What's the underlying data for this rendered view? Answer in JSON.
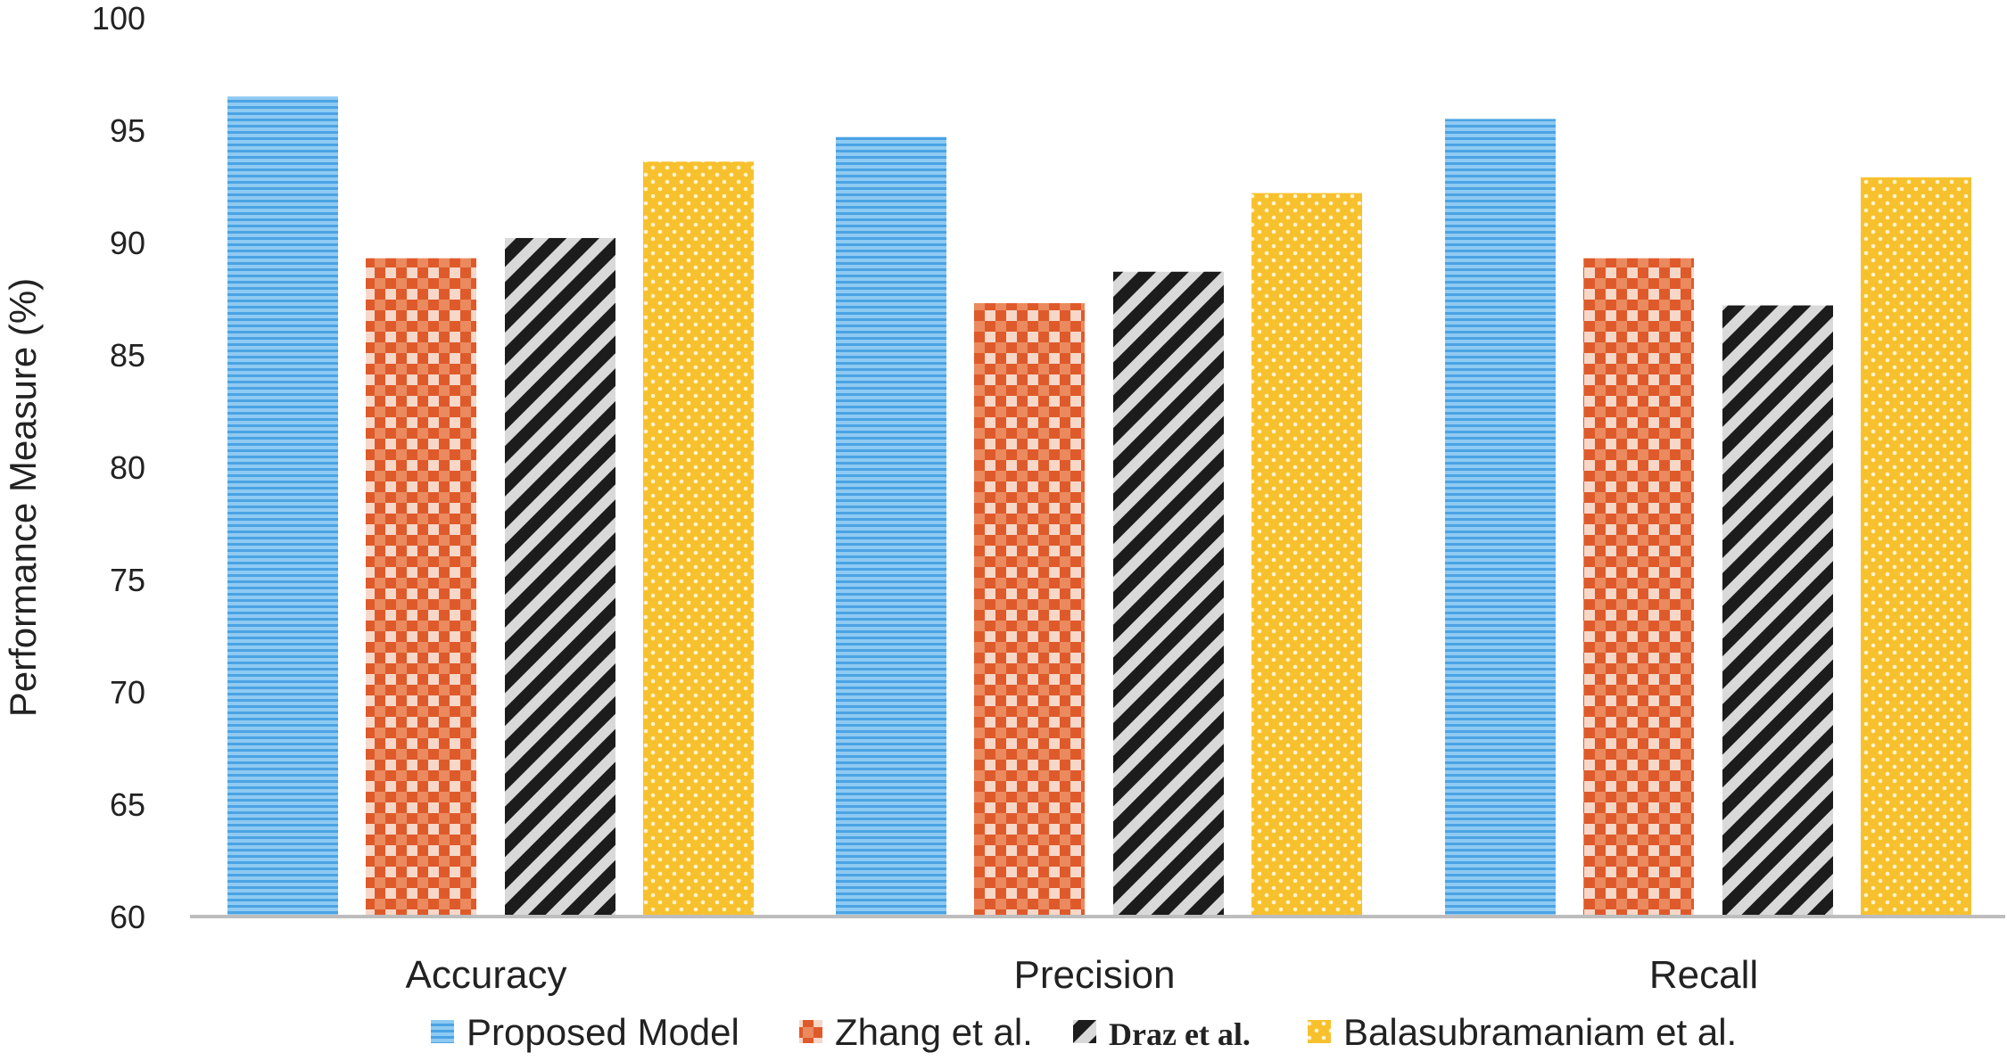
{
  "chart_data": {
    "type": "bar",
    "title": "",
    "xlabel": "",
    "ylabel": "Performance Measure (%)",
    "ylim": [
      60,
      100
    ],
    "yticks": [
      60,
      65,
      70,
      75,
      80,
      85,
      90,
      95,
      100
    ],
    "grid": false,
    "legend_position": "bottom",
    "categories": [
      "Accuracy",
      "Precision",
      "Recall"
    ],
    "series": [
      {
        "name": "Proposed Model",
        "values": [
          96.5,
          94.7,
          95.5
        ],
        "color": "#5aaee8",
        "pattern": "horizontal-lines"
      },
      {
        "name": "Zhang et al.",
        "values": [
          89.3,
          87.3,
          89.3
        ],
        "color": "#e06030",
        "pattern": "checker"
      },
      {
        "name": "Draz et al.",
        "values": [
          90.2,
          88.7,
          87.2
        ],
        "color": "#222222",
        "pattern": "diagonal-stripes"
      },
      {
        "name": "Balasubramaniam et al.",
        "values": [
          93.6,
          92.2,
          92.9
        ],
        "color": "#f7c12e",
        "pattern": "dots"
      }
    ]
  }
}
